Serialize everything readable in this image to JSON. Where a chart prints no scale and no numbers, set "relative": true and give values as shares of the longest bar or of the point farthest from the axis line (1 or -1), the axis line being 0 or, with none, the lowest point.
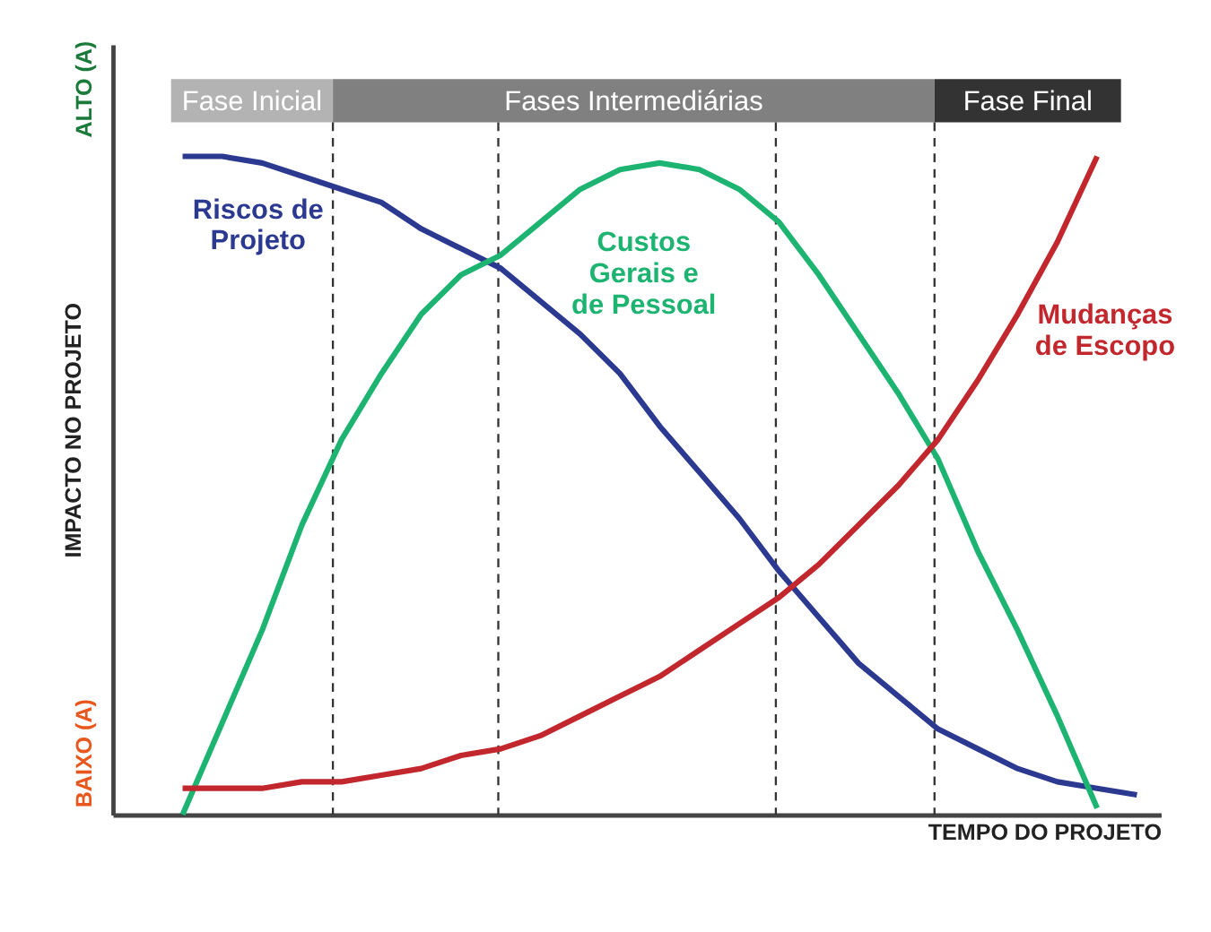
{
  "chart_data": {
    "type": "line",
    "relative": true,
    "xlabel": "TEMPO DO PROJETO",
    "ylabel": "IMPACTO NO PROJETO",
    "grid": "x",
    "marker": "none",
    "line_style": "solid",
    "categories": [
      null,
      null,
      null,
      null,
      null,
      null,
      null,
      null,
      null,
      null,
      null,
      null,
      null,
      null,
      null,
      null,
      null,
      null,
      null,
      null,
      null,
      null,
      null,
      null,
      null
    ],
    "annotations": [
      "BAIXO (A)",
      "ALTO (A)",
      "Fase Inicial",
      "Fases Intermediárias",
      "Fase Final"
    ],
    "series": [
      {
        "name": "Riscos de Projeto",
        "color": "#2b3990",
        "values": [
          1.0,
          1.0,
          0.99,
          0.97,
          0.95,
          0.93,
          0.89,
          0.86,
          0.83,
          0.78,
          0.73,
          0.67,
          0.59,
          0.52,
          0.45,
          0.37,
          0.3,
          0.23,
          0.18,
          0.13,
          0.1,
          0.07,
          0.05,
          0.04,
          0.03
        ]
      },
      {
        "name": "Custos Gerais e de Pessoal",
        "color": "#1db371",
        "values": [
          0,
          0.14,
          0.28,
          0.44,
          0.57,
          0.67,
          0.76,
          0.82,
          0.85,
          0.9,
          0.95,
          0.98,
          0.99,
          0.98,
          0.95,
          0.9,
          0.82,
          0.73,
          0.64,
          0.54,
          0.4,
          0.28,
          0.15,
          0.01,
          null
        ]
      },
      {
        "name": "Mudanças de Escopo",
        "color": "#c1272d",
        "values": [
          0.04,
          0.04,
          0.04,
          0.05,
          0.05,
          0.06,
          0.07,
          0.09,
          0.1,
          0.12,
          0.15,
          0.18,
          0.21,
          0.25,
          0.29,
          0.33,
          0.38,
          0.44,
          0.5,
          0.57,
          0.66,
          0.76,
          0.87,
          1.0,
          null
        ]
      }
    ]
  }
}
